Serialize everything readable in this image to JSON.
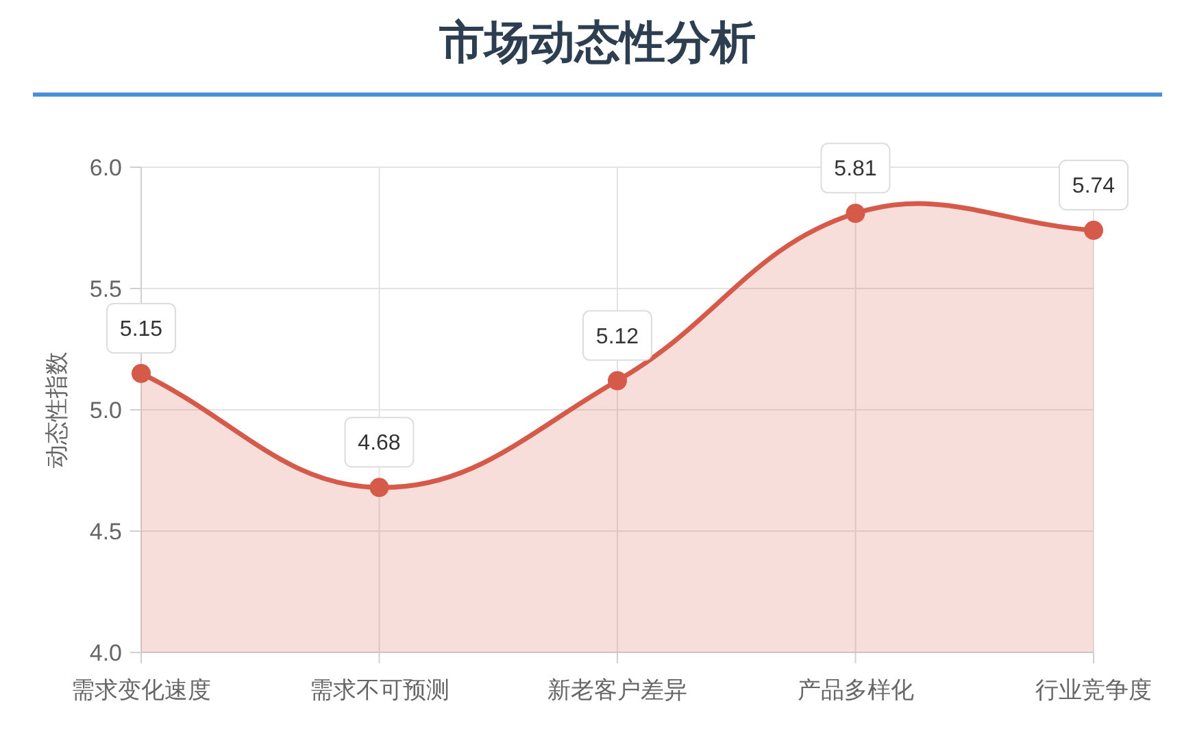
{
  "chart_data": {
    "type": "area",
    "title": "市场动态性分析",
    "ylabel": "动态性指数",
    "categories": [
      "需求变化速度",
      "需求不可预测",
      "新老客户差异",
      "产品多样化",
      "行业竞争度"
    ],
    "values": [
      5.15,
      4.68,
      5.12,
      5.81,
      5.74
    ],
    "color": "#d55a4a",
    "ylim": [
      4,
      6
    ],
    "yticks": [
      {
        "value": 4,
        "label": "4.0"
      },
      {
        "value": 4.5,
        "label": "4.5"
      },
      {
        "value": 5,
        "label": "5.0"
      },
      {
        "value": 5.5,
        "label": "5.5"
      },
      {
        "value": 6,
        "label": "6.0"
      }
    ],
    "grid": true,
    "data_labels": true,
    "marker": "circle"
  }
}
